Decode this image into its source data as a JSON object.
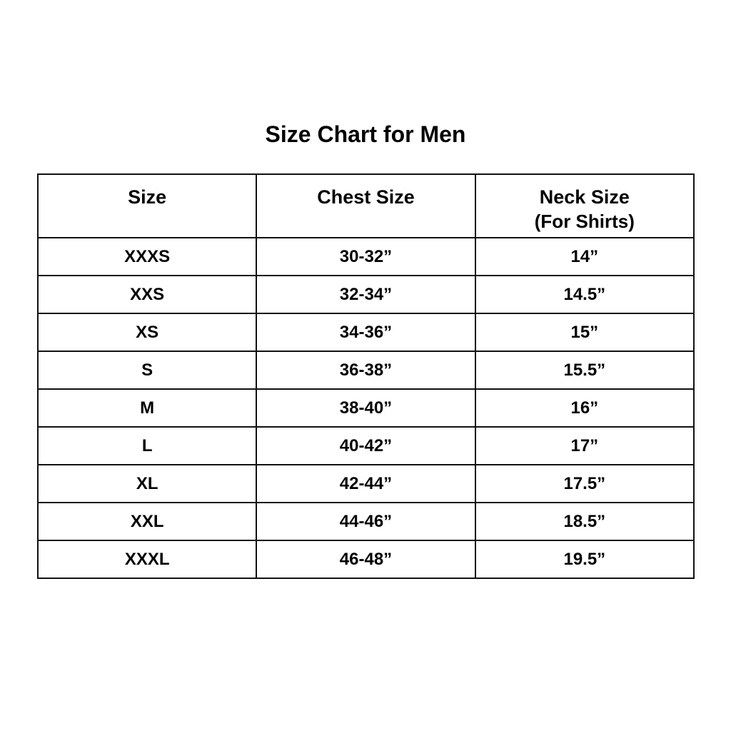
{
  "title": "Size Chart for Men",
  "table": {
    "headers": [
      {
        "label": "Size",
        "sub": ""
      },
      {
        "label": "Chest Size",
        "sub": ""
      },
      {
        "label": "Neck Size",
        "sub": "(For Shirts)"
      }
    ],
    "rows": [
      [
        "XXXS",
        "30-32”",
        "14”"
      ],
      [
        "XXS",
        "32-34”",
        "14.5”"
      ],
      [
        "XS",
        "34-36”",
        "15”"
      ],
      [
        "S",
        "36-38”",
        "15.5”"
      ],
      [
        "M",
        "38-40”",
        "16”"
      ],
      [
        "L",
        "40-42”",
        "17”"
      ],
      [
        "XL",
        "42-44”",
        "17.5”"
      ],
      [
        "XXL",
        "44-46”",
        "18.5”"
      ],
      [
        "XXXL",
        "46-48”",
        "19.5”"
      ]
    ]
  }
}
